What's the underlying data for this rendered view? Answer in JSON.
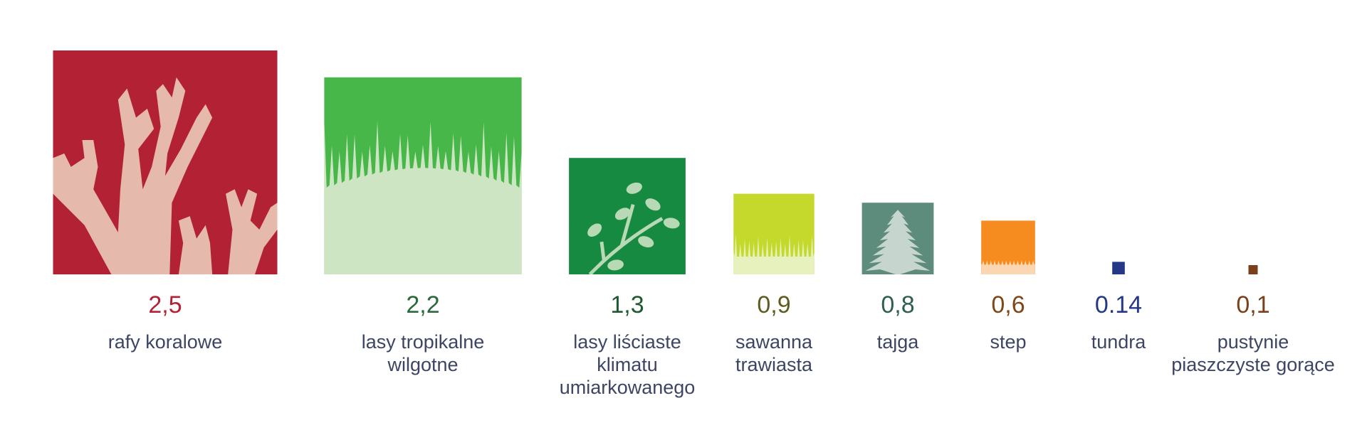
{
  "chart_data": {
    "type": "bar",
    "categories": [
      "rafy koralowe",
      "lasy tropikalne wilgotne",
      "lasy liściaste klimatu umiarkowanego",
      "sawanna trawiasta",
      "tajga",
      "step",
      "tundra",
      "pustynie piaszczyste gorące"
    ],
    "category_lines": [
      [
        "rafy koralowe"
      ],
      [
        "lasy tropikalne wilgotne"
      ],
      [
        "lasy liściaste",
        "klimatu",
        "umiarkowanego"
      ],
      [
        "sawanna",
        "trawiasta"
      ],
      [
        "tajga"
      ],
      [
        "step"
      ],
      [
        "tundra"
      ],
      [
        "pustynie",
        "piaszczyste gorące"
      ]
    ],
    "values": [
      2.5,
      2.2,
      1.3,
      0.9,
      0.8,
      0.6,
      0.14,
      0.1
    ],
    "value_labels": [
      "2,5",
      "2,2",
      "1,3",
      "0,9",
      "0,8",
      "0,6",
      "0.14",
      "0,1"
    ],
    "colors": {
      "square": [
        "#b22234",
        "#48b749",
        "#178a41",
        "#c5d92d",
        "#5e8c7c",
        "#f68b1f",
        "#253888",
        "#7b3f1c"
      ],
      "ground": [
        "#e6b9ad",
        "#cde5c2",
        "#b8d9b5",
        "#e6f1bd",
        "#c6d6cf",
        "#fcd6b0",
        "#253888",
        "#7b3f1c"
      ],
      "value_text": [
        "#b22234",
        "#2a6a3a",
        "#1e5a2e",
        "#5f5c22",
        "#2e5f4f",
        "#7d4718",
        "#253888",
        "#7b3f1c"
      ],
      "category_text": "#3d4564"
    },
    "icons": [
      "coral-icon",
      "palm-fronds-icon",
      "leafy-branch-icon",
      "grass-icon",
      "fir-tree-icon",
      "steppe-grass-icon",
      "",
      ""
    ],
    "scale": "square side proportional to value",
    "title": "",
    "xlabel": "",
    "ylabel": ""
  }
}
